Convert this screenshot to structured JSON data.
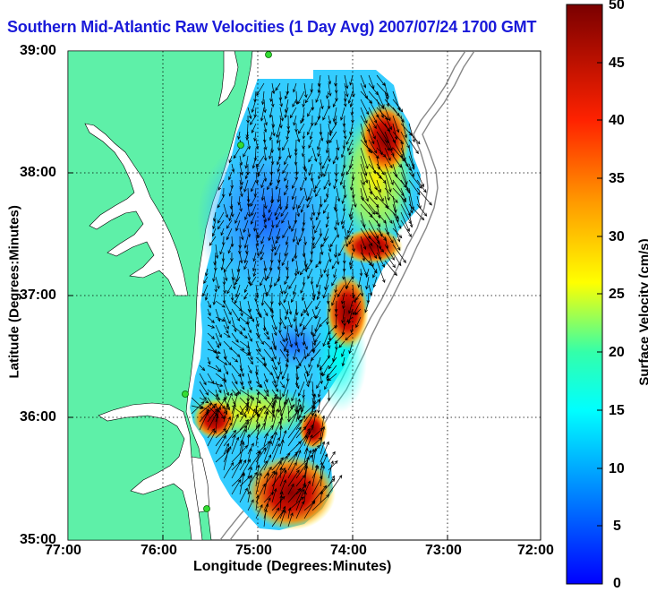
{
  "title": "Southern Mid-Atlantic Raw Velocities (1 Day Avg) 2007/07/24 1700 GMT",
  "map": {
    "xlabel": "Longitude (Degrees:Minutes)",
    "ylabel": "Latitude (Degrees:Minutes)",
    "x_ticks": [
      "77:00",
      "76:00",
      "75:00",
      "74:00",
      "73:00",
      "72:00"
    ],
    "y_ticks": [
      "39:00",
      "38:00",
      "37:00",
      "36:00",
      "35:00"
    ],
    "lon_range": [
      -77,
      -72
    ],
    "lat_range": [
      35,
      39
    ],
    "grid": true,
    "land_color": "#5ef0a8",
    "colorbar": {
      "label": "Surface Velocity (cm/s)",
      "ticks": [
        "50",
        "45",
        "40",
        "35",
        "30",
        "25",
        "20",
        "15",
        "10",
        "5",
        "0"
      ],
      "range": [
        0,
        50
      ],
      "colormap": "jet"
    }
  }
}
